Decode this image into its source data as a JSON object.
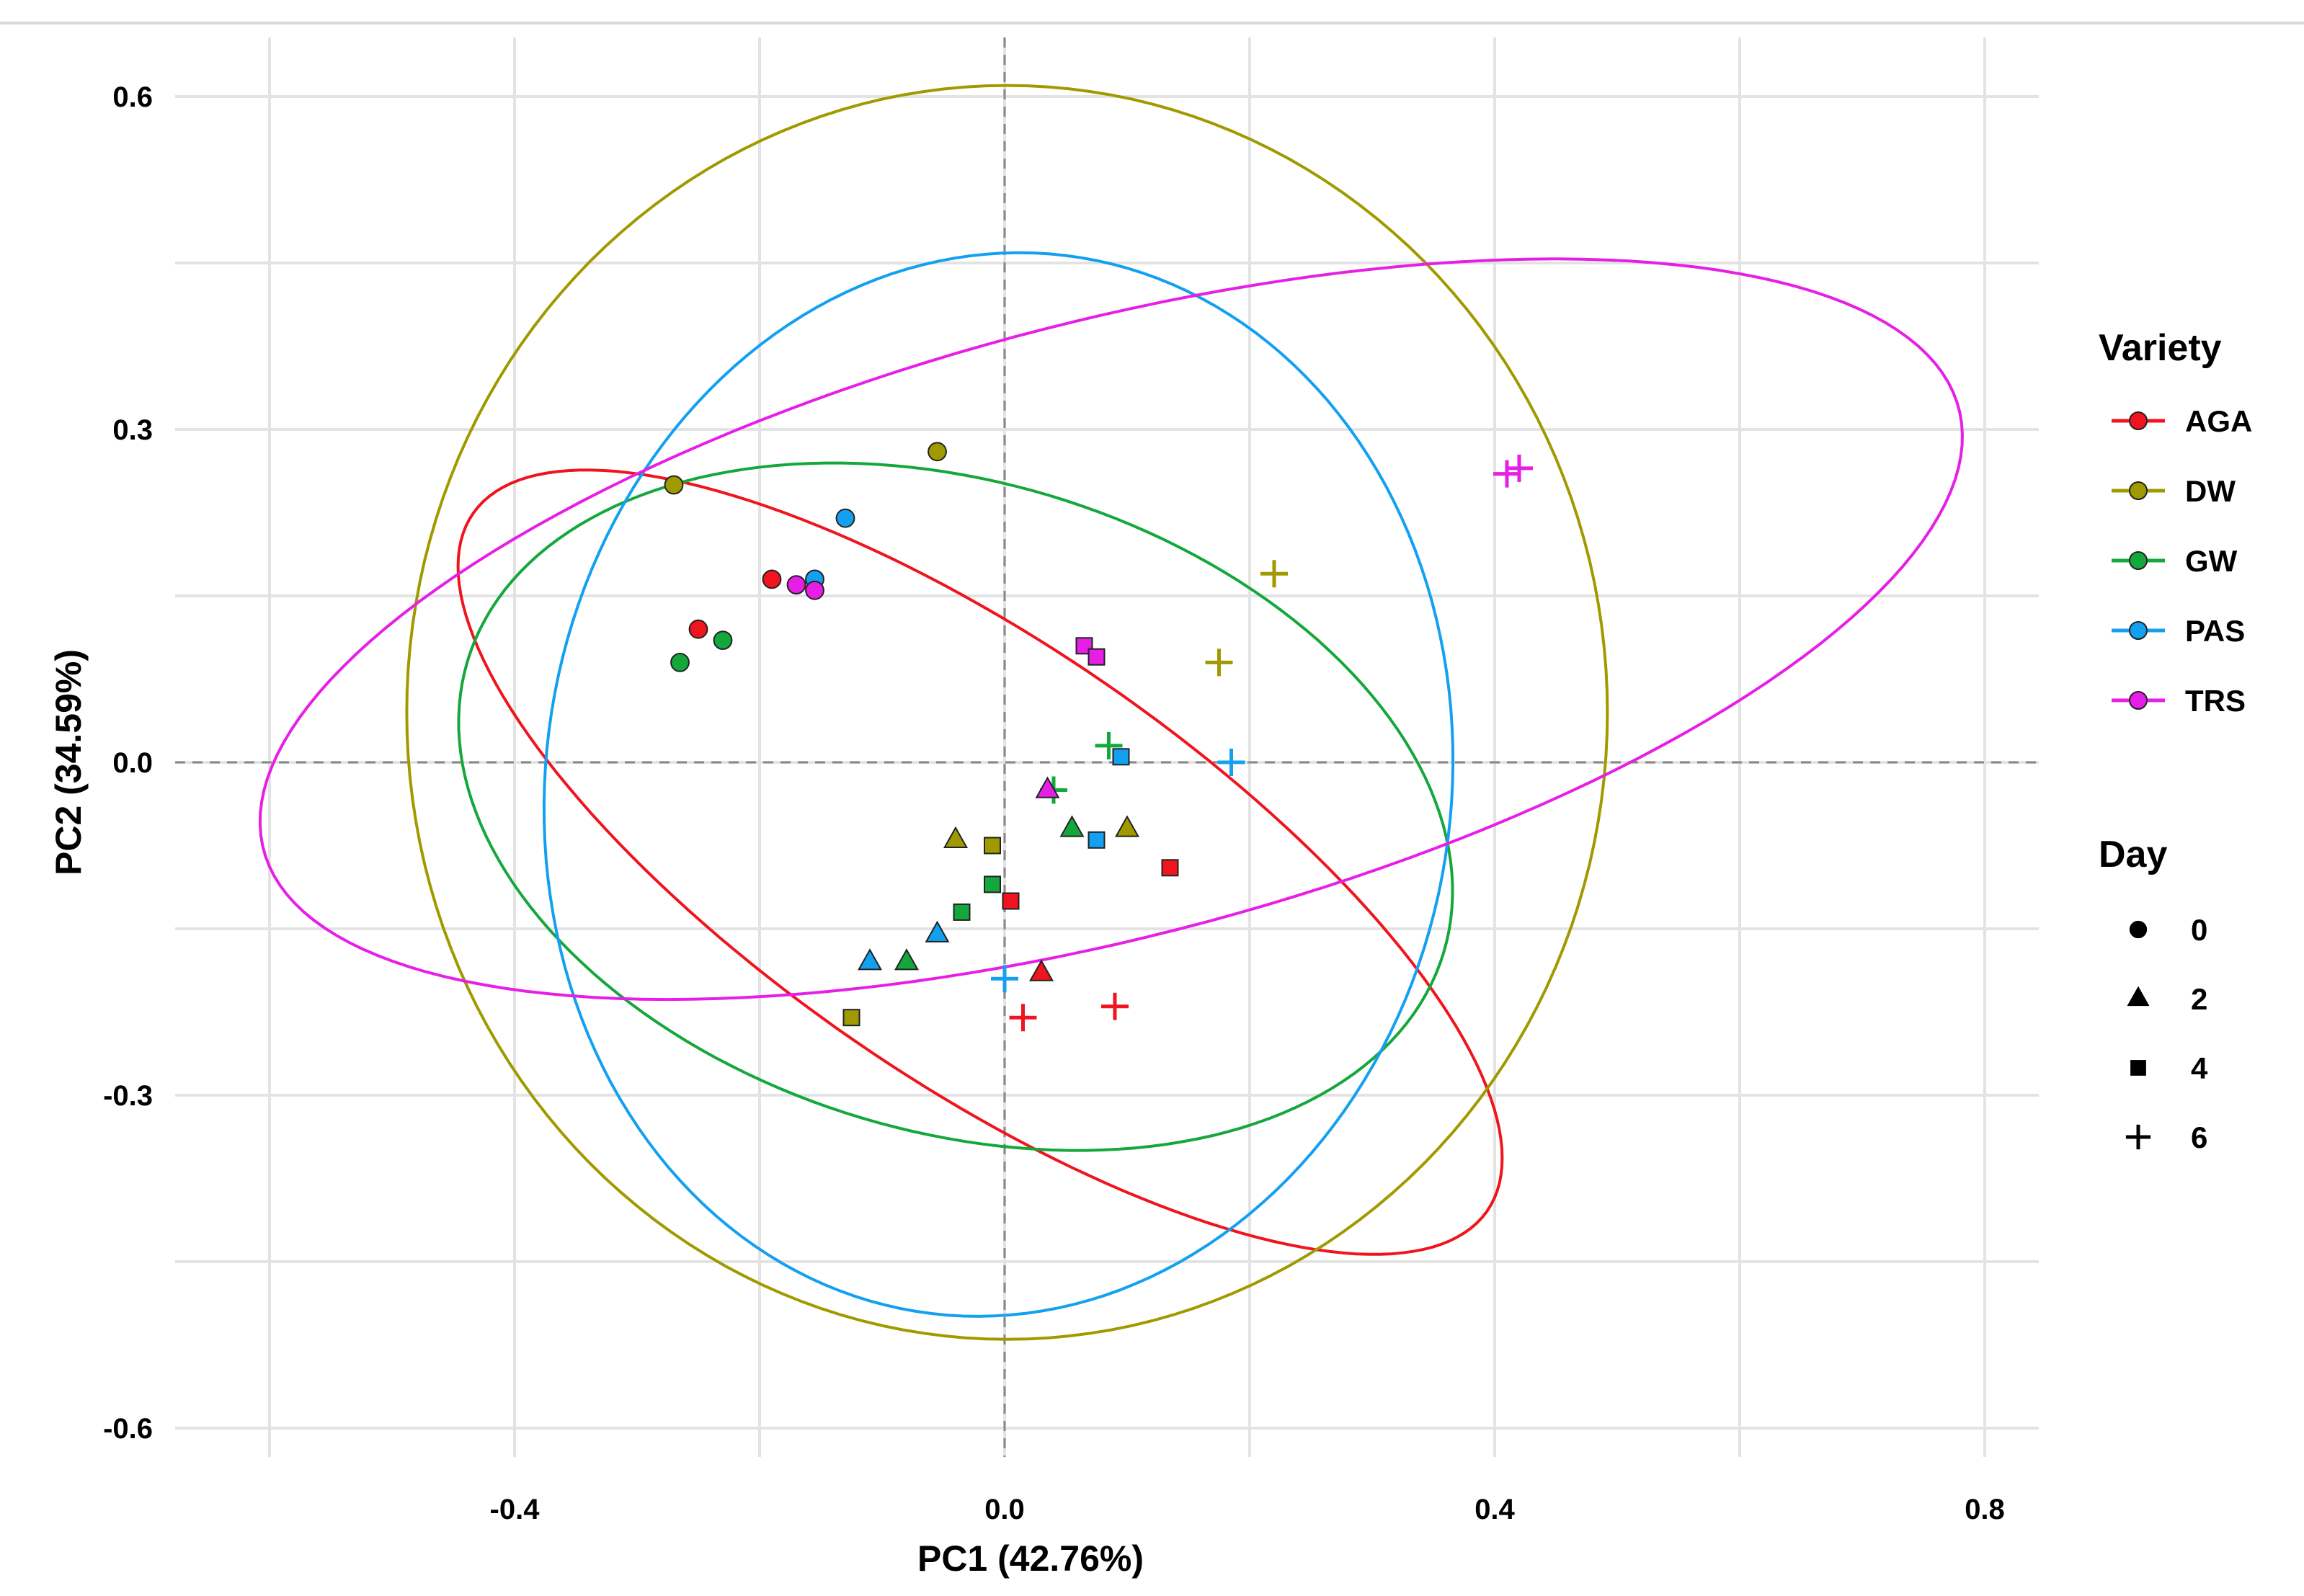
{
  "chart_data": {
    "type": "scatter",
    "title": "",
    "xlabel": "PC1 (42.76%)",
    "ylabel": "PC2 (34.59%)",
    "xlim": [
      -0.66,
      0.84
    ],
    "ylim": [
      -0.64,
      0.65
    ],
    "x_ticks": [
      -0.4,
      0.0,
      0.4,
      0.8
    ],
    "x_tick_labels": [
      "-0.4",
      "0.0",
      "0.4",
      "0.8"
    ],
    "y_ticks": [
      -0.6,
      -0.3,
      0.0,
      0.3,
      0.6
    ],
    "y_tick_labels": [
      "-0.6",
      "-0.3",
      "0.0",
      "0.3",
      "0.6"
    ],
    "grid": true,
    "reference_lines": {
      "x": 0.0,
      "y": 0.0,
      "style": "dashed"
    },
    "legend": {
      "position": "right",
      "variety_title": "Variety",
      "day_title": "Day",
      "varieties": [
        {
          "name": "AGA",
          "color": "#f0141e"
        },
        {
          "name": "DW",
          "color": "#a09a00"
        },
        {
          "name": "GW",
          "color": "#14a83c"
        },
        {
          "name": "PAS",
          "color": "#14a0f0"
        },
        {
          "name": "TRS",
          "color": "#e61ee6"
        }
      ],
      "days": [
        {
          "label": "0",
          "shape": "circle"
        },
        {
          "label": "2",
          "shape": "triangle"
        },
        {
          "label": "4",
          "shape": "square"
        },
        {
          "label": "6",
          "shape": "plus"
        }
      ]
    },
    "ellipses": [
      {
        "variety": "AGA",
        "cx": -0.02,
        "cy": -0.09,
        "rx": 0.52,
        "ry": 0.19,
        "angle_deg": -38
      },
      {
        "variety": "DW",
        "cx": 0.002,
        "cy": 0.045,
        "rx": 0.49,
        "ry": 0.565,
        "angle_deg": 0
      },
      {
        "variety": "GW",
        "cx": -0.04,
        "cy": -0.04,
        "rx": 0.42,
        "ry": 0.29,
        "angle_deg": -21
      },
      {
        "variety": "PAS",
        "cx": -0.005,
        "cy": -0.02,
        "rx": 0.37,
        "ry": 0.48,
        "angle_deg": -5
      },
      {
        "variety": "TRS",
        "cx": 0.087,
        "cy": 0.12,
        "rx": 0.72,
        "ry": 0.275,
        "angle_deg": 16.5
      }
    ],
    "series": [
      {
        "name": "AGA",
        "points": [
          {
            "day": 0,
            "x": -0.25,
            "y": 0.12
          },
          {
            "day": 0,
            "x": -0.19,
            "y": 0.165
          },
          {
            "day": 2,
            "x": 0.03,
            "y": -0.19
          },
          {
            "day": 4,
            "x": 0.005,
            "y": -0.125
          },
          {
            "day": 4,
            "x": 0.135,
            "y": -0.095
          },
          {
            "day": 6,
            "x": 0.015,
            "y": -0.23
          },
          {
            "day": 6,
            "x": 0.09,
            "y": -0.22
          }
        ]
      },
      {
        "name": "DW",
        "points": [
          {
            "day": 0,
            "x": -0.27,
            "y": 0.25
          },
          {
            "day": 0,
            "x": -0.055,
            "y": 0.28
          },
          {
            "day": 2,
            "x": -0.04,
            "y": -0.07
          },
          {
            "day": 2,
            "x": 0.1,
            "y": -0.06
          },
          {
            "day": 4,
            "x": -0.125,
            "y": -0.23
          },
          {
            "day": 4,
            "x": -0.01,
            "y": -0.075
          },
          {
            "day": 6,
            "x": 0.22,
            "y": 0.17
          },
          {
            "day": 6,
            "x": 0.175,
            "y": 0.09
          }
        ]
      },
      {
        "name": "GW",
        "points": [
          {
            "day": 0,
            "x": -0.265,
            "y": 0.09
          },
          {
            "day": 0,
            "x": -0.23,
            "y": 0.11
          },
          {
            "day": 2,
            "x": -0.08,
            "y": -0.18
          },
          {
            "day": 2,
            "x": 0.055,
            "y": -0.06
          },
          {
            "day": 4,
            "x": -0.035,
            "y": -0.135
          },
          {
            "day": 4,
            "x": -0.01,
            "y": -0.11
          },
          {
            "day": 6,
            "x": 0.04,
            "y": -0.025
          },
          {
            "day": 6,
            "x": 0.085,
            "y": 0.015
          }
        ]
      },
      {
        "name": "PAS",
        "points": [
          {
            "day": 0,
            "x": -0.13,
            "y": 0.22
          },
          {
            "day": 0,
            "x": -0.155,
            "y": 0.165
          },
          {
            "day": 2,
            "x": -0.11,
            "y": -0.18
          },
          {
            "day": 2,
            "x": -0.055,
            "y": -0.155
          },
          {
            "day": 4,
            "x": 0.075,
            "y": -0.07
          },
          {
            "day": 4,
            "x": 0.095,
            "y": 0.005
          },
          {
            "day": 6,
            "x": 0.0,
            "y": -0.195
          },
          {
            "day": 6,
            "x": 0.185,
            "y": 0.0
          }
        ]
      },
      {
        "name": "TRS",
        "points": [
          {
            "day": 0,
            "x": -0.17,
            "y": 0.16
          },
          {
            "day": 0,
            "x": -0.155,
            "y": 0.155
          },
          {
            "day": 2,
            "x": 0.035,
            "y": -0.025
          },
          {
            "day": 4,
            "x": 0.065,
            "y": 0.105
          },
          {
            "day": 4,
            "x": 0.075,
            "y": 0.095
          },
          {
            "day": 6,
            "x": 0.41,
            "y": 0.26
          },
          {
            "day": 6,
            "x": 0.42,
            "y": 0.265
          }
        ]
      }
    ]
  }
}
